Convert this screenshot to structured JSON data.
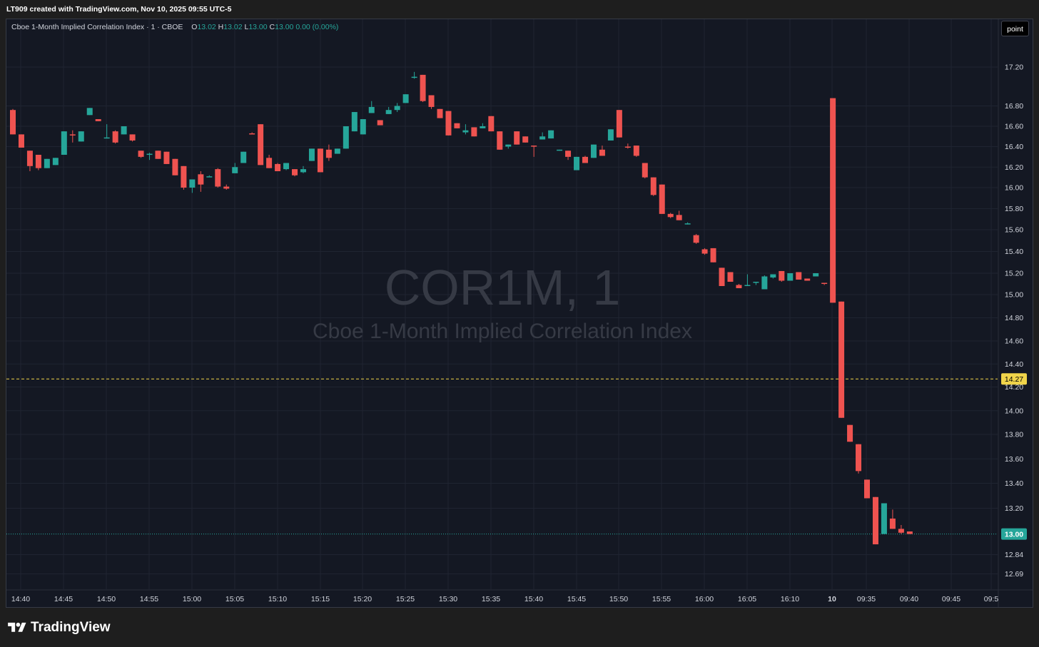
{
  "attribution": "LT909 created with TradingView.com, Nov 10, 2025 09:55 UTC-5",
  "legend": {
    "title": "Cboe 1-Month Implied Correlation Index · 1 · CBOE",
    "o_label": "O",
    "o_value": "13.02",
    "h_label": "H",
    "h_value": "13.02",
    "l_label": "L",
    "l_value": "13.00",
    "c_label": "C",
    "c_value": "13.00",
    "change": "0.00 (0.00%)"
  },
  "scale_button": "point",
  "watermark": {
    "symbol": "COR1M, 1",
    "name": "Cboe 1-Month Implied Correlation Index"
  },
  "brand": "TradingView",
  "colors": {
    "up": "#26a69a",
    "down": "#ef5350",
    "background": "#141823",
    "grid": "#1f2431",
    "text": "#d1d4dc",
    "marker_line": "#f0d44a",
    "last_price": "#26a69a"
  },
  "chart_data": {
    "type": "candlestick",
    "y_ticks": [
      "17.20",
      "16.80",
      "16.60",
      "16.40",
      "16.20",
      "16.00",
      "15.80",
      "15.60",
      "15.40",
      "15.20",
      "15.00",
      "14.80",
      "14.60",
      "14.40",
      "14.20",
      "14.00",
      "13.80",
      "13.60",
      "13.40",
      "13.20",
      "12.84",
      "12.69"
    ],
    "x_ticks": [
      "14:40",
      "14:45",
      "14:50",
      "14:55",
      "15:00",
      "15:05",
      "15:10",
      "15:15",
      "15:20",
      "15:25",
      "15:30",
      "15:35",
      "15:40",
      "15:45",
      "15:50",
      "15:55",
      "16:00",
      "16:05",
      "16:10",
      "10",
      "09:35",
      "09:40",
      "09:45",
      "09:5"
    ],
    "marker_line": {
      "value": 14.27,
      "label": "14.27"
    },
    "last_price": {
      "value": 13.0,
      "label": "13.00"
    },
    "candles": [
      {
        "o": 16.76,
        "h": 16.77,
        "l": 16.52,
        "c": 16.52
      },
      {
        "o": 16.52,
        "h": 16.52,
        "l": 16.39,
        "c": 16.39
      },
      {
        "o": 16.36,
        "h": 16.36,
        "l": 16.16,
        "c": 16.21
      },
      {
        "o": 16.32,
        "h": 16.32,
        "l": 16.17,
        "c": 16.19
      },
      {
        "o": 16.19,
        "h": 16.28,
        "l": 16.19,
        "c": 16.28
      },
      {
        "o": 16.22,
        "h": 16.29,
        "l": 16.22,
        "c": 16.29
      },
      {
        "o": 16.32,
        "h": 16.55,
        "l": 16.32,
        "c": 16.55
      },
      {
        "o": 16.52,
        "h": 16.56,
        "l": 16.44,
        "c": 16.51
      },
      {
        "o": 16.45,
        "h": 16.55,
        "l": 16.45,
        "c": 16.55
      },
      {
        "o": 16.71,
        "h": 16.78,
        "l": 16.71,
        "c": 16.78
      },
      {
        "o": 16.67,
        "h": 16.67,
        "l": 16.65,
        "c": 16.65
      },
      {
        "o": 16.48,
        "h": 16.62,
        "l": 16.48,
        "c": 16.49
      },
      {
        "o": 16.55,
        "h": 16.56,
        "l": 16.43,
        "c": 16.44
      },
      {
        "o": 16.52,
        "h": 16.6,
        "l": 16.52,
        "c": 16.6
      },
      {
        "o": 16.52,
        "h": 16.52,
        "l": 16.45,
        "c": 16.46
      },
      {
        "o": 16.36,
        "h": 16.36,
        "l": 16.29,
        "c": 16.3
      },
      {
        "o": 16.33,
        "h": 16.34,
        "l": 16.27,
        "c": 16.33
      },
      {
        "o": 16.36,
        "h": 16.36,
        "l": 16.28,
        "c": 16.28
      },
      {
        "o": 16.35,
        "h": 16.35,
        "l": 16.23,
        "c": 16.23
      },
      {
        "o": 16.28,
        "h": 16.28,
        "l": 16.12,
        "c": 16.12
      },
      {
        "o": 16.21,
        "h": 16.21,
        "l": 15.98,
        "c": 16.0
      },
      {
        "o": 16.0,
        "h": 16.08,
        "l": 15.95,
        "c": 16.08
      },
      {
        "o": 16.13,
        "h": 16.16,
        "l": 15.96,
        "c": 16.03
      },
      {
        "o": 16.11,
        "h": 16.12,
        "l": 16.11,
        "c": 16.11
      },
      {
        "o": 16.18,
        "h": 16.19,
        "l": 16.0,
        "c": 16.01
      },
      {
        "o": 16.01,
        "h": 16.03,
        "l": 15.98,
        "c": 15.99
      },
      {
        "o": 16.14,
        "h": 16.24,
        "l": 16.14,
        "c": 16.2
      },
      {
        "o": 16.24,
        "h": 16.35,
        "l": 16.24,
        "c": 16.35
      },
      {
        "o": 16.53,
        "h": 16.54,
        "l": 16.52,
        "c": 16.52
      },
      {
        "o": 16.62,
        "h": 16.62,
        "l": 16.22,
        "c": 16.22
      },
      {
        "o": 16.29,
        "h": 16.32,
        "l": 16.19,
        "c": 16.19
      },
      {
        "o": 16.23,
        "h": 16.24,
        "l": 16.16,
        "c": 16.16
      },
      {
        "o": 16.18,
        "h": 16.24,
        "l": 16.17,
        "c": 16.24
      },
      {
        "o": 16.18,
        "h": 16.18,
        "l": 16.11,
        "c": 16.12
      },
      {
        "o": 16.15,
        "h": 16.21,
        "l": 16.14,
        "c": 16.18
      },
      {
        "o": 16.26,
        "h": 16.38,
        "l": 16.26,
        "c": 16.38
      },
      {
        "o": 16.38,
        "h": 16.38,
        "l": 16.15,
        "c": 16.15
      },
      {
        "o": 16.37,
        "h": 16.42,
        "l": 16.26,
        "c": 16.29
      },
      {
        "o": 16.33,
        "h": 16.38,
        "l": 16.33,
        "c": 16.38
      },
      {
        "o": 16.38,
        "h": 16.6,
        "l": 16.38,
        "c": 16.6
      },
      {
        "o": 16.55,
        "h": 16.74,
        "l": 16.55,
        "c": 16.74
      },
      {
        "o": 16.52,
        "h": 16.67,
        "l": 16.52,
        "c": 16.67
      },
      {
        "o": 16.73,
        "h": 16.85,
        "l": 16.73,
        "c": 16.79
      },
      {
        "o": 16.66,
        "h": 16.66,
        "l": 16.61,
        "c": 16.61
      },
      {
        "o": 16.72,
        "h": 16.79,
        "l": 16.72,
        "c": 16.76
      },
      {
        "o": 16.76,
        "h": 16.83,
        "l": 16.74,
        "c": 16.8
      },
      {
        "o": 16.83,
        "h": 16.92,
        "l": 16.83,
        "c": 16.92
      },
      {
        "o": 17.1,
        "h": 17.15,
        "l": 17.08,
        "c": 17.1
      },
      {
        "o": 17.12,
        "h": 17.12,
        "l": 16.84,
        "c": 16.85
      },
      {
        "o": 16.91,
        "h": 16.91,
        "l": 16.77,
        "c": 16.79
      },
      {
        "o": 16.77,
        "h": 16.77,
        "l": 16.68,
        "c": 16.68
      },
      {
        "o": 16.75,
        "h": 16.75,
        "l": 16.51,
        "c": 16.51
      },
      {
        "o": 16.63,
        "h": 16.63,
        "l": 16.58,
        "c": 16.58
      },
      {
        "o": 16.54,
        "h": 16.62,
        "l": 16.52,
        "c": 16.56
      },
      {
        "o": 16.59,
        "h": 16.59,
        "l": 16.5,
        "c": 16.5
      },
      {
        "o": 16.58,
        "h": 16.63,
        "l": 16.58,
        "c": 16.6
      },
      {
        "o": 16.7,
        "h": 16.7,
        "l": 16.55,
        "c": 16.55
      },
      {
        "o": 16.55,
        "h": 16.55,
        "l": 16.37,
        "c": 16.37
      },
      {
        "o": 16.4,
        "h": 16.42,
        "l": 16.38,
        "c": 16.42
      },
      {
        "o": 16.55,
        "h": 16.55,
        "l": 16.42,
        "c": 16.42
      },
      {
        "o": 16.5,
        "h": 16.5,
        "l": 16.44,
        "c": 16.44
      },
      {
        "o": 16.41,
        "h": 16.41,
        "l": 16.3,
        "c": 16.4
      },
      {
        "o": 16.47,
        "h": 16.54,
        "l": 16.47,
        "c": 16.5
      },
      {
        "o": 16.48,
        "h": 16.56,
        "l": 16.48,
        "c": 16.56
      },
      {
        "o": 16.37,
        "h": 16.37,
        "l": 16.36,
        "c": 16.37
      },
      {
        "o": 16.36,
        "h": 16.36,
        "l": 16.27,
        "c": 16.3
      },
      {
        "o": 16.17,
        "h": 16.3,
        "l": 16.17,
        "c": 16.3
      },
      {
        "o": 16.3,
        "h": 16.31,
        "l": 16.24,
        "c": 16.24
      },
      {
        "o": 16.29,
        "h": 16.42,
        "l": 16.29,
        "c": 16.42
      },
      {
        "o": 16.37,
        "h": 16.41,
        "l": 16.31,
        "c": 16.31
      },
      {
        "o": 16.46,
        "h": 16.57,
        "l": 16.46,
        "c": 16.57
      },
      {
        "o": 16.76,
        "h": 16.76,
        "l": 16.49,
        "c": 16.49
      },
      {
        "o": 16.4,
        "h": 16.43,
        "l": 16.38,
        "c": 16.39
      },
      {
        "o": 16.41,
        "h": 16.41,
        "l": 16.3,
        "c": 16.31
      },
      {
        "o": 16.24,
        "h": 16.24,
        "l": 16.09,
        "c": 16.1
      },
      {
        "o": 16.1,
        "h": 16.1,
        "l": 15.92,
        "c": 15.93
      },
      {
        "o": 16.03,
        "h": 16.03,
        "l": 15.75,
        "c": 15.75
      },
      {
        "o": 15.75,
        "h": 15.76,
        "l": 15.71,
        "c": 15.72
      },
      {
        "o": 15.74,
        "h": 15.78,
        "l": 15.69,
        "c": 15.69
      },
      {
        "o": 15.66,
        "h": 15.67,
        "l": 15.65,
        "c": 15.66
      },
      {
        "o": 15.55,
        "h": 15.56,
        "l": 15.47,
        "c": 15.48
      },
      {
        "o": 15.42,
        "h": 15.43,
        "l": 15.37,
        "c": 15.38
      },
      {
        "o": 15.43,
        "h": 15.43,
        "l": 15.3,
        "c": 15.3
      },
      {
        "o": 15.25,
        "h": 15.25,
        "l": 15.08,
        "c": 15.08
      },
      {
        "o": 15.21,
        "h": 15.21,
        "l": 15.12,
        "c": 15.12
      },
      {
        "o": 15.09,
        "h": 15.1,
        "l": 15.06,
        "c": 15.06
      },
      {
        "o": 15.09,
        "h": 15.19,
        "l": 15.08,
        "c": 15.09
      },
      {
        "o": 15.12,
        "h": 15.12,
        "l": 15.09,
        "c": 15.12
      },
      {
        "o": 15.05,
        "h": 15.18,
        "l": 15.05,
        "c": 15.17
      },
      {
        "o": 15.16,
        "h": 15.19,
        "l": 15.15,
        "c": 15.19
      },
      {
        "o": 15.22,
        "h": 15.22,
        "l": 15.12,
        "c": 15.13
      },
      {
        "o": 15.13,
        "h": 15.2,
        "l": 15.13,
        "c": 15.2
      },
      {
        "o": 15.21,
        "h": 15.21,
        "l": 15.14,
        "c": 15.14
      },
      {
        "o": 15.15,
        "h": 15.15,
        "l": 15.13,
        "c": 15.13
      },
      {
        "o": 15.17,
        "h": 15.2,
        "l": 15.17,
        "c": 15.2
      },
      {
        "o": 15.11,
        "h": 15.11,
        "l": 15.09,
        "c": 15.1
      },
      {
        "o": 16.88,
        "h": 16.88,
        "l": 14.93,
        "c": 14.93
      },
      {
        "o": 14.94,
        "h": 14.94,
        "l": 13.94,
        "c": 13.94
      },
      {
        "o": 13.88,
        "h": 13.88,
        "l": 13.74,
        "c": 13.74
      },
      {
        "o": 13.72,
        "h": 13.72,
        "l": 13.48,
        "c": 13.5
      },
      {
        "o": 13.43,
        "h": 13.43,
        "l": 13.28,
        "c": 13.28
      },
      {
        "o": 13.29,
        "h": 13.29,
        "l": 12.92,
        "c": 12.92
      },
      {
        "o": 13.0,
        "h": 13.24,
        "l": 13.0,
        "c": 13.24
      },
      {
        "o": 13.12,
        "h": 13.19,
        "l": 13.04,
        "c": 13.04
      },
      {
        "o": 13.04,
        "h": 13.07,
        "l": 13.0,
        "c": 13.01
      },
      {
        "o": 13.02,
        "h": 13.02,
        "l": 13.0,
        "c": 13.0
      }
    ]
  }
}
